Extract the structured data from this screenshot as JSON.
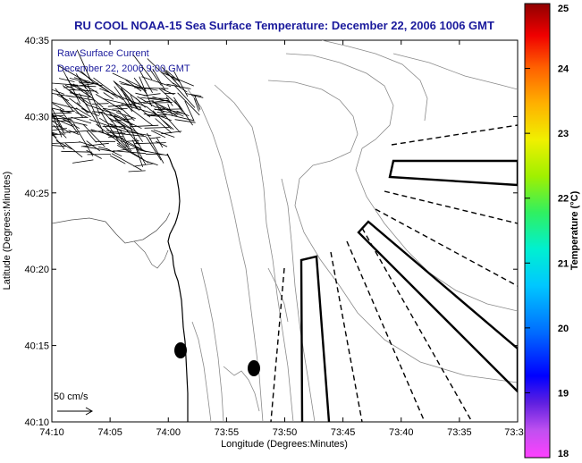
{
  "title": "RU COOL  NOAA-15  Sea Surface Temperature:  December 22, 2006 1006 GMT",
  "inset": {
    "line1": "Raw Surface Current",
    "line2": "December 22, 2006 9:00 GMT"
  },
  "scale_label": "50 cm/s",
  "chart_data": {
    "type": "map",
    "xlabel": "Longitude (Degrees:Minutes)",
    "ylabel": "Latitude (Degrees:Minutes)",
    "x_ticks": [
      "74:10",
      "74:05",
      "74:00",
      "73:55",
      "73:50",
      "73:45",
      "73:40",
      "73:35",
      "73:3"
    ],
    "y_ticks": [
      "40:10",
      "40:15",
      "40:20",
      "40:25",
      "40:30",
      "40:35"
    ],
    "xlim_minutes_west": [
      10,
      30
    ],
    "ylim_minutes_north": [
      10,
      35
    ],
    "colorbar": {
      "label": "Temperature (°C)",
      "ticks": [
        "18",
        "19",
        "20",
        "21",
        "22",
        "23",
        "24",
        "25"
      ],
      "range": [
        18,
        25
      ]
    },
    "markers": [
      {
        "lon_min": 8.8,
        "lat_min": 14.7
      },
      {
        "lon_min": 4.7,
        "lat_min": 13.5
      }
    ],
    "colors": {
      "title": "#1a1a9c",
      "contours": "#808080",
      "vectors": "#000000"
    }
  }
}
